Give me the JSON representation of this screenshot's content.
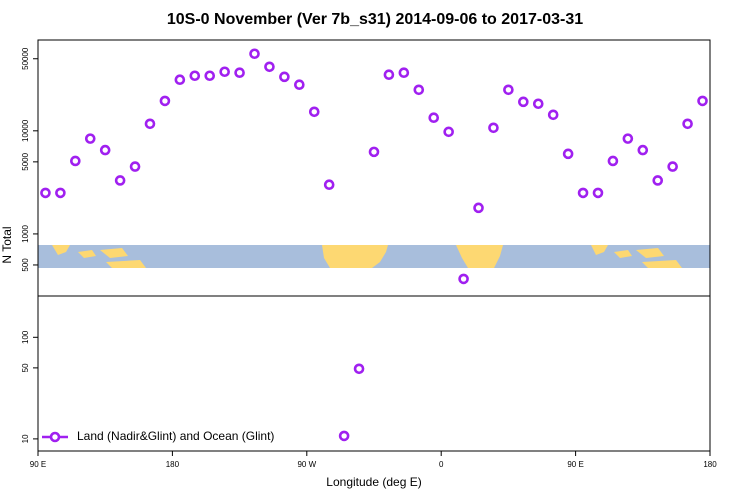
{
  "chart_data": [
    {
      "type": "scatter",
      "title": "10S-0 November (Ver 7b_s31)   2014-09-06 to 2017-03-31",
      "ylabel": "N Total",
      "log_y": true,
      "xlim": [
        90,
        540
      ],
      "ylim": [
        250,
        76000
      ],
      "yticks": [
        500,
        1000,
        5000,
        10000,
        50000
      ],
      "series": [
        {
          "color": "#a020f0",
          "x": [
            95,
            105,
            115,
            125,
            135,
            145,
            155,
            165,
            175,
            185,
            195,
            205,
            215,
            225,
            235,
            245,
            255,
            265,
            275,
            285,
            315,
            325,
            335,
            345,
            355,
            365,
            375,
            385,
            395,
            405,
            415,
            425,
            435,
            445,
            455,
            465,
            475,
            485,
            495,
            505,
            515,
            525,
            535
          ],
          "values": [
            2500,
            2500,
            5100,
            8400,
            6500,
            3300,
            4500,
            11700,
            19500,
            31300,
            34200,
            34200,
            37400,
            36600,
            55900,
            41800,
            33400,
            28000,
            15300,
            3000,
            6250,
            35000,
            36600,
            25000,
            13400,
            9780,
            366,
            1790,
            10700,
            25000,
            19100,
            18300,
            14300,
            5980,
            2500,
            2500,
            5100,
            8400,
            6500,
            3300,
            4500,
            11700,
            19500
          ]
        }
      ]
    },
    {
      "type": "scatter",
      "xlabel": "Longitude (deg E)",
      "log_y": true,
      "xlim": [
        90,
        540
      ],
      "xticks": [
        {
          "value": 90,
          "label": "90 E"
        },
        180,
        {
          "value": 270,
          "label": "90 W"
        },
        {
          "value": 360,
          "label": "0"
        },
        {
          "value": 450,
          "label": "90 E"
        },
        {
          "value": 540,
          "label": "180"
        }
      ],
      "ylim": [
        7.6,
        255
      ],
      "yticks": [
        10,
        50,
        100
      ],
      "legend": "bottom left",
      "series": [
        {
          "name": "Land (Nadir&Glint) and Ocean (Glint)",
          "color": "#a020f0",
          "x": [
            295,
            305
          ],
          "values": [
            10.7,
            49
          ]
        }
      ]
    }
  ]
}
